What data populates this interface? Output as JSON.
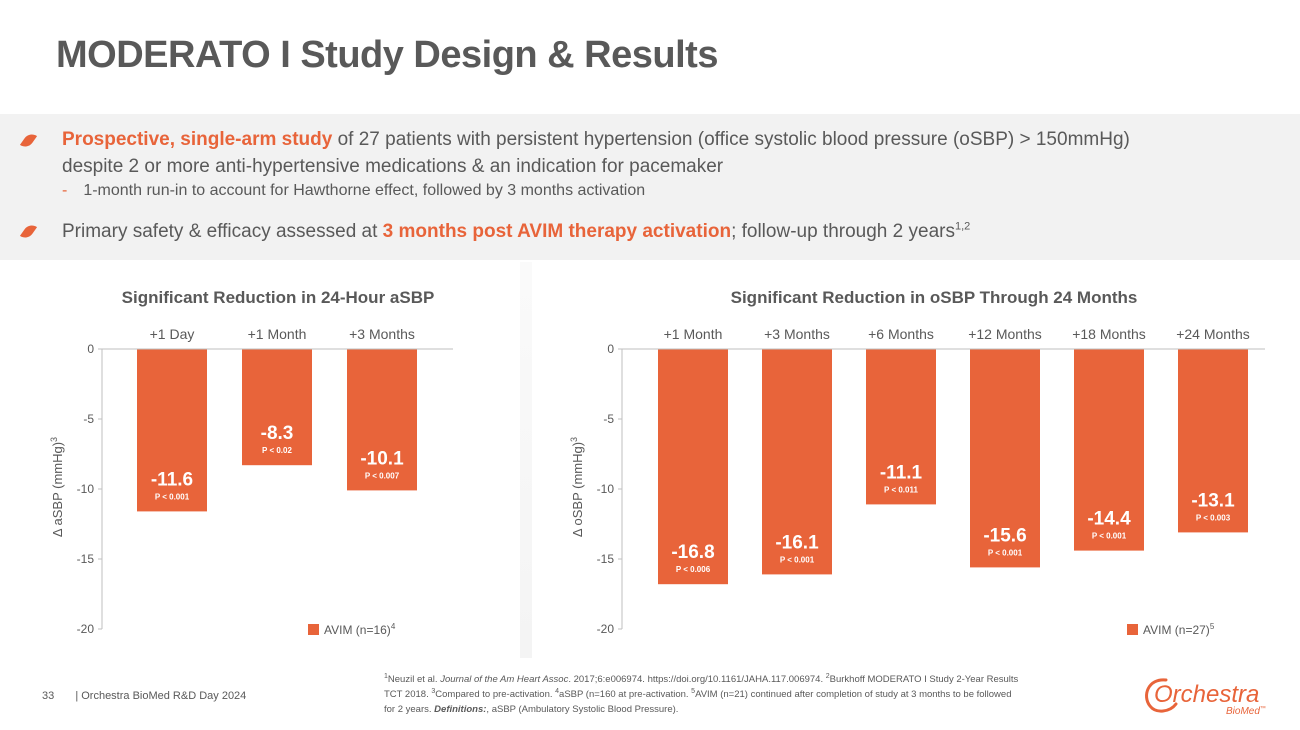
{
  "title": "MODERATO I Study Design & Results",
  "bullets": {
    "b1_highlight": "Prospective, single-arm study",
    "b1_rest": " of 27 patients with persistent hypertension (office systolic blood pressure (oSBP) > 150mmHg)",
    "b1_line2": "despite 2 or more anti-hypertensive medications & an indication for pacemaker",
    "b1_sub_dash": "-",
    "b1_sub": "1-month run-in to account for Hawthorne effect, followed by 3 months activation",
    "b2_start": "Primary safety & efficacy assessed at ",
    "b2_highlight": "3 months post AVIM therapy activation",
    "b2_end": "; follow-up through 2 years",
    "b2_sup": "1,2"
  },
  "chart_data": [
    {
      "type": "bar",
      "title": "Significant Reduction in 24-Hour aSBP",
      "ylabel": "Δ  aSBP (mmHg)",
      "ylabel_sup": "3",
      "categories": [
        "+1 Day",
        "+1 Month",
        "+3 Months"
      ],
      "values": [
        -11.6,
        -8.3,
        -10.1
      ],
      "value_labels": [
        "-11.6",
        "-8.3",
        "-10.1"
      ],
      "p_values": [
        "P < 0.001",
        "P < 0.02",
        "P < 0.007"
      ],
      "yticks": [
        "0",
        "-5",
        "-10",
        "-15",
        "-20"
      ],
      "ylim": [
        -20,
        0
      ],
      "legend": "AVIM (n=16)",
      "legend_sup": "4",
      "color": "#e8643a"
    },
    {
      "type": "bar",
      "title": "Significant Reduction in oSBP Through 24 Months",
      "ylabel": "Δ  oSBP (mmHg)",
      "ylabel_sup": "3",
      "categories": [
        "+1 Month",
        "+3 Months",
        "+6 Months",
        "+12 Months",
        "+18 Months",
        "+24 Months"
      ],
      "values": [
        -16.8,
        -16.1,
        -11.1,
        -15.6,
        -14.4,
        -13.1
      ],
      "value_labels": [
        "-16.8",
        "-16.1",
        "-11.1",
        "-15.6",
        "-14.4",
        "-13.1"
      ],
      "p_values": [
        "P < 0.006",
        "P < 0.001",
        "P < 0.011",
        "P < 0.001",
        "P < 0.001",
        "P < 0.003"
      ],
      "yticks": [
        "0",
        "-5",
        "-10",
        "-15",
        "-20"
      ],
      "ylim": [
        -20,
        0
      ],
      "legend": "AVIM (n=27)",
      "legend_sup": "5",
      "color": "#e8643a"
    }
  ],
  "footer": {
    "page_number": "33",
    "org": "|  Orchestra BioMed R&D Day 2024",
    "n1": "1",
    "ref1": "Neuzil et al. ",
    "journal": "Journal of the Am Heart Assoc",
    "ref1b": ". 2017;6:e006974. https://doi.org/10.1161/JAHA.117.006974. ",
    "n2": "2",
    "ref2": "Burkhoff MODERATO I Study 2-Year Results TCT 2018. ",
    "n3": "3",
    "ref3": "Compared to pre-activation.  ",
    "n4": "4",
    "ref4": "aSBP (n=160 at pre-activation. ",
    "n5": "5",
    "ref5": "AVIM (n=21) continued after completion of study at 3 months to be followed for 2 years. ",
    "defs_label": "Definitions:",
    "defs": ", aSBP (Ambulatory Systolic Blood Pressure)."
  },
  "logo": {
    "word": "Orchestra",
    "sub": "BioMed",
    "tm": "™"
  }
}
